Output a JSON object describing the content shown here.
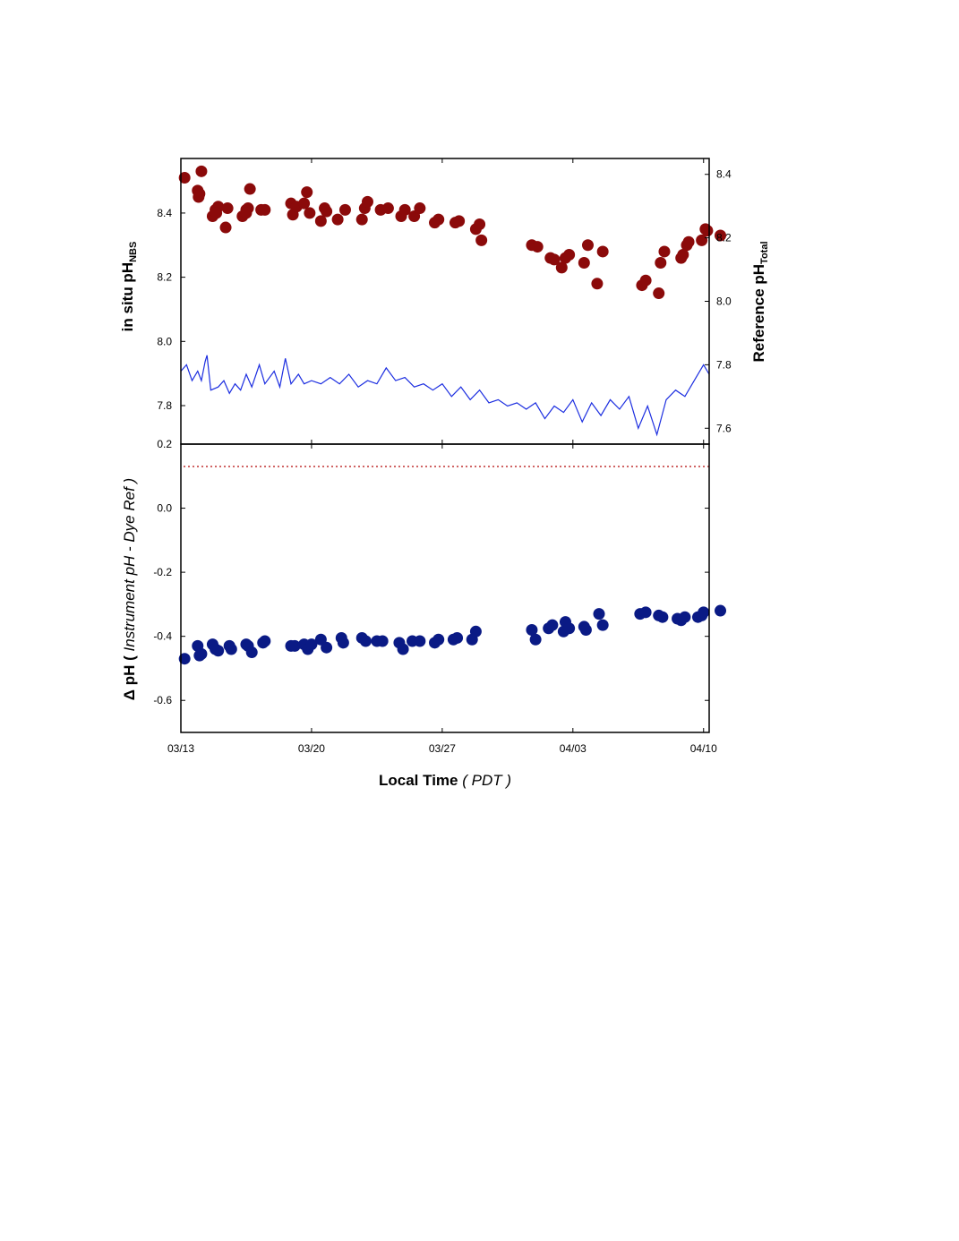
{
  "chart_data": [
    {
      "panel": "top",
      "type": "scatter",
      "ylabel_left": {
        "main": "in situ pH",
        "sub": "NBS"
      },
      "ylabel_right": {
        "main": "Reference pH",
        "sub": "Total"
      },
      "xlim": [
        0,
        28.3
      ],
      "xticks": [
        {
          "x": 0,
          "label": "03/13"
        },
        {
          "x": 7,
          "label": "03/20"
        },
        {
          "x": 14,
          "label": "03/27"
        },
        {
          "x": 21,
          "label": "04/03"
        },
        {
          "x": 28,
          "label": "04/10"
        }
      ],
      "ylim_left": [
        7.68,
        8.57
      ],
      "yticks_left": [
        "7.8",
        "8.0",
        "8.2",
        "8.4"
      ],
      "ylim_right": [
        7.55,
        8.45
      ],
      "yticks_right": [
        "7.6",
        "7.8",
        "8.0",
        "8.2",
        "8.4"
      ],
      "grid": false,
      "series": [
        {
          "kind": "points",
          "axis": "left",
          "color": "#8b0a0a",
          "points": [
            [
              0.2,
              8.51
            ],
            [
              0.9,
              8.47
            ],
            [
              1.0,
              8.46
            ],
            [
              1.1,
              8.53
            ],
            [
              0.95,
              8.45
            ],
            [
              1.7,
              8.39
            ],
            [
              1.85,
              8.41
            ],
            [
              2.0,
              8.42
            ],
            [
              1.9,
              8.4
            ],
            [
              2.4,
              8.355
            ],
            [
              2.5,
              8.415
            ],
            [
              3.3,
              8.39
            ],
            [
              3.5,
              8.41
            ],
            [
              3.6,
              8.415
            ],
            [
              3.5,
              8.4
            ],
            [
              3.7,
              8.475
            ],
            [
              4.3,
              8.41
            ],
            [
              4.5,
              8.41
            ],
            [
              5.9,
              8.43
            ],
            [
              6.0,
              8.395
            ],
            [
              6.2,
              8.42
            ],
            [
              6.6,
              8.43
            ],
            [
              6.75,
              8.465
            ],
            [
              6.9,
              8.4
            ],
            [
              7.5,
              8.375
            ],
            [
              7.7,
              8.415
            ],
            [
              7.8,
              8.405
            ],
            [
              8.4,
              8.38
            ],
            [
              8.8,
              8.41
            ],
            [
              9.7,
              8.38
            ],
            [
              9.85,
              8.415
            ],
            [
              10.0,
              8.435
            ],
            [
              10.7,
              8.41
            ],
            [
              11.1,
              8.415
            ],
            [
              11.8,
              8.39
            ],
            [
              12.0,
              8.41
            ],
            [
              12.5,
              8.39
            ],
            [
              12.8,
              8.415
            ],
            [
              13.6,
              8.37
            ],
            [
              13.8,
              8.38
            ],
            [
              14.7,
              8.37
            ],
            [
              14.9,
              8.375
            ],
            [
              15.8,
              8.35
            ],
            [
              16.0,
              8.365
            ],
            [
              16.1,
              8.315
            ],
            [
              18.8,
              8.3
            ],
            [
              19.1,
              8.295
            ],
            [
              19.8,
              8.26
            ],
            [
              20.0,
              8.255
            ],
            [
              20.4,
              8.23
            ],
            [
              20.6,
              8.26
            ],
            [
              20.8,
              8.27
            ],
            [
              21.6,
              8.245
            ],
            [
              21.8,
              8.3
            ],
            [
              22.3,
              8.18
            ],
            [
              22.6,
              8.28
            ],
            [
              24.7,
              8.175
            ],
            [
              24.9,
              8.19
            ],
            [
              25.6,
              8.15
            ],
            [
              25.7,
              8.245
            ],
            [
              25.9,
              8.28
            ],
            [
              26.8,
              8.26
            ],
            [
              26.9,
              8.27
            ],
            [
              27.1,
              8.3
            ],
            [
              27.2,
              8.31
            ],
            [
              27.9,
              8.315
            ],
            [
              28.1,
              8.35
            ],
            [
              28.2,
              8.345
            ],
            [
              28.9,
              8.33
            ]
          ]
        },
        {
          "kind": "line",
          "axis": "right",
          "color": "#1c2ee0",
          "points": [
            [
              0,
              7.78
            ],
            [
              0.3,
              7.8
            ],
            [
              0.6,
              7.75
            ],
            [
              0.9,
              7.78
            ],
            [
              1.1,
              7.75
            ],
            [
              1.3,
              7.81
            ],
            [
              1.4,
              7.83
            ],
            [
              1.6,
              7.72
            ],
            [
              2.0,
              7.73
            ],
            [
              2.3,
              7.75
            ],
            [
              2.6,
              7.71
            ],
            [
              2.9,
              7.74
            ],
            [
              3.2,
              7.72
            ],
            [
              3.5,
              7.77
            ],
            [
              3.8,
              7.73
            ],
            [
              4.2,
              7.8
            ],
            [
              4.5,
              7.74
            ],
            [
              5.0,
              7.78
            ],
            [
              5.3,
              7.73
            ],
            [
              5.6,
              7.82
            ],
            [
              5.9,
              7.74
            ],
            [
              6.3,
              7.77
            ],
            [
              6.6,
              7.74
            ],
            [
              7.0,
              7.75
            ],
            [
              7.5,
              7.74
            ],
            [
              8.0,
              7.76
            ],
            [
              8.5,
              7.74
            ],
            [
              9.0,
              7.77
            ],
            [
              9.5,
              7.73
            ],
            [
              10.0,
              7.75
            ],
            [
              10.5,
              7.74
            ],
            [
              11.0,
              7.79
            ],
            [
              11.5,
              7.75
            ],
            [
              12.0,
              7.76
            ],
            [
              12.5,
              7.73
            ],
            [
              13.0,
              7.74
            ],
            [
              13.5,
              7.72
            ],
            [
              14.0,
              7.74
            ],
            [
              14.5,
              7.7
            ],
            [
              15.0,
              7.73
            ],
            [
              15.5,
              7.69
            ],
            [
              16.0,
              7.72
            ],
            [
              16.5,
              7.68
            ],
            [
              17.0,
              7.69
            ],
            [
              17.5,
              7.67
            ],
            [
              18.0,
              7.68
            ],
            [
              18.5,
              7.66
            ],
            [
              19.0,
              7.68
            ],
            [
              19.5,
              7.63
            ],
            [
              20.0,
              7.67
            ],
            [
              20.5,
              7.65
            ],
            [
              21.0,
              7.69
            ],
            [
              21.5,
              7.62
            ],
            [
              22.0,
              7.68
            ],
            [
              22.5,
              7.64
            ],
            [
              23.0,
              7.69
            ],
            [
              23.5,
              7.66
            ],
            [
              24.0,
              7.7
            ],
            [
              24.5,
              7.6
            ],
            [
              25.0,
              7.67
            ],
            [
              25.5,
              7.58
            ],
            [
              26.0,
              7.69
            ],
            [
              26.5,
              7.72
            ],
            [
              27.0,
              7.7
            ],
            [
              27.5,
              7.75
            ],
            [
              28.0,
              7.8
            ],
            [
              28.3,
              7.77
            ]
          ]
        }
      ]
    },
    {
      "panel": "bottom",
      "type": "scatter",
      "ylabel_prefix": "Δ pH  ( ",
      "ylabel_italic": "Instrument pH - Dye Ref",
      "ylabel_suffix": " )",
      "xlabel_main": "Local Time",
      "xlabel_italic": "PDT",
      "xlim": [
        0,
        28.3
      ],
      "ylim": [
        -0.7,
        0.2
      ],
      "yticks": [
        "0.2",
        "0.0",
        "-0.2",
        "-0.4",
        "-0.6"
      ],
      "reference_line": {
        "y": 0.13,
        "style": "dotted",
        "color": "#c03030"
      },
      "grid": false,
      "series": [
        {
          "kind": "points",
          "color": "#0a1a85",
          "points": [
            [
              0.2,
              -0.47
            ],
            [
              0.9,
              -0.43
            ],
            [
              1.0,
              -0.46
            ],
            [
              1.1,
              -0.455
            ],
            [
              1.7,
              -0.425
            ],
            [
              1.85,
              -0.44
            ],
            [
              2.0,
              -0.445
            ],
            [
              2.6,
              -0.43
            ],
            [
              2.7,
              -0.44
            ],
            [
              3.5,
              -0.425
            ],
            [
              3.6,
              -0.43
            ],
            [
              3.8,
              -0.45
            ],
            [
              4.5,
              -0.415
            ],
            [
              4.4,
              -0.42
            ],
            [
              5.9,
              -0.43
            ],
            [
              6.1,
              -0.43
            ],
            [
              6.6,
              -0.425
            ],
            [
              6.8,
              -0.44
            ],
            [
              7.0,
              -0.425
            ],
            [
              7.5,
              -0.41
            ],
            [
              7.8,
              -0.435
            ],
            [
              8.6,
              -0.405
            ],
            [
              8.7,
              -0.42
            ],
            [
              9.7,
              -0.405
            ],
            [
              9.9,
              -0.415
            ],
            [
              10.5,
              -0.415
            ],
            [
              10.8,
              -0.415
            ],
            [
              11.7,
              -0.42
            ],
            [
              11.9,
              -0.44
            ],
            [
              12.4,
              -0.415
            ],
            [
              12.8,
              -0.415
            ],
            [
              13.6,
              -0.42
            ],
            [
              13.8,
              -0.41
            ],
            [
              14.6,
              -0.41
            ],
            [
              14.8,
              -0.405
            ],
            [
              15.6,
              -0.41
            ],
            [
              15.8,
              -0.385
            ],
            [
              18.8,
              -0.38
            ],
            [
              19.0,
              -0.41
            ],
            [
              19.7,
              -0.375
            ],
            [
              19.9,
              -0.365
            ],
            [
              20.5,
              -0.385
            ],
            [
              20.6,
              -0.355
            ],
            [
              20.8,
              -0.375
            ],
            [
              21.6,
              -0.37
            ],
            [
              21.7,
              -0.38
            ],
            [
              22.4,
              -0.33
            ],
            [
              22.6,
              -0.365
            ],
            [
              24.6,
              -0.33
            ],
            [
              24.9,
              -0.325
            ],
            [
              25.6,
              -0.335
            ],
            [
              25.8,
              -0.34
            ],
            [
              26.6,
              -0.345
            ],
            [
              26.8,
              -0.35
            ],
            [
              27.0,
              -0.34
            ],
            [
              27.7,
              -0.34
            ],
            [
              27.9,
              -0.335
            ],
            [
              28.0,
              -0.325
            ],
            [
              28.9,
              -0.32
            ]
          ]
        }
      ]
    }
  ]
}
